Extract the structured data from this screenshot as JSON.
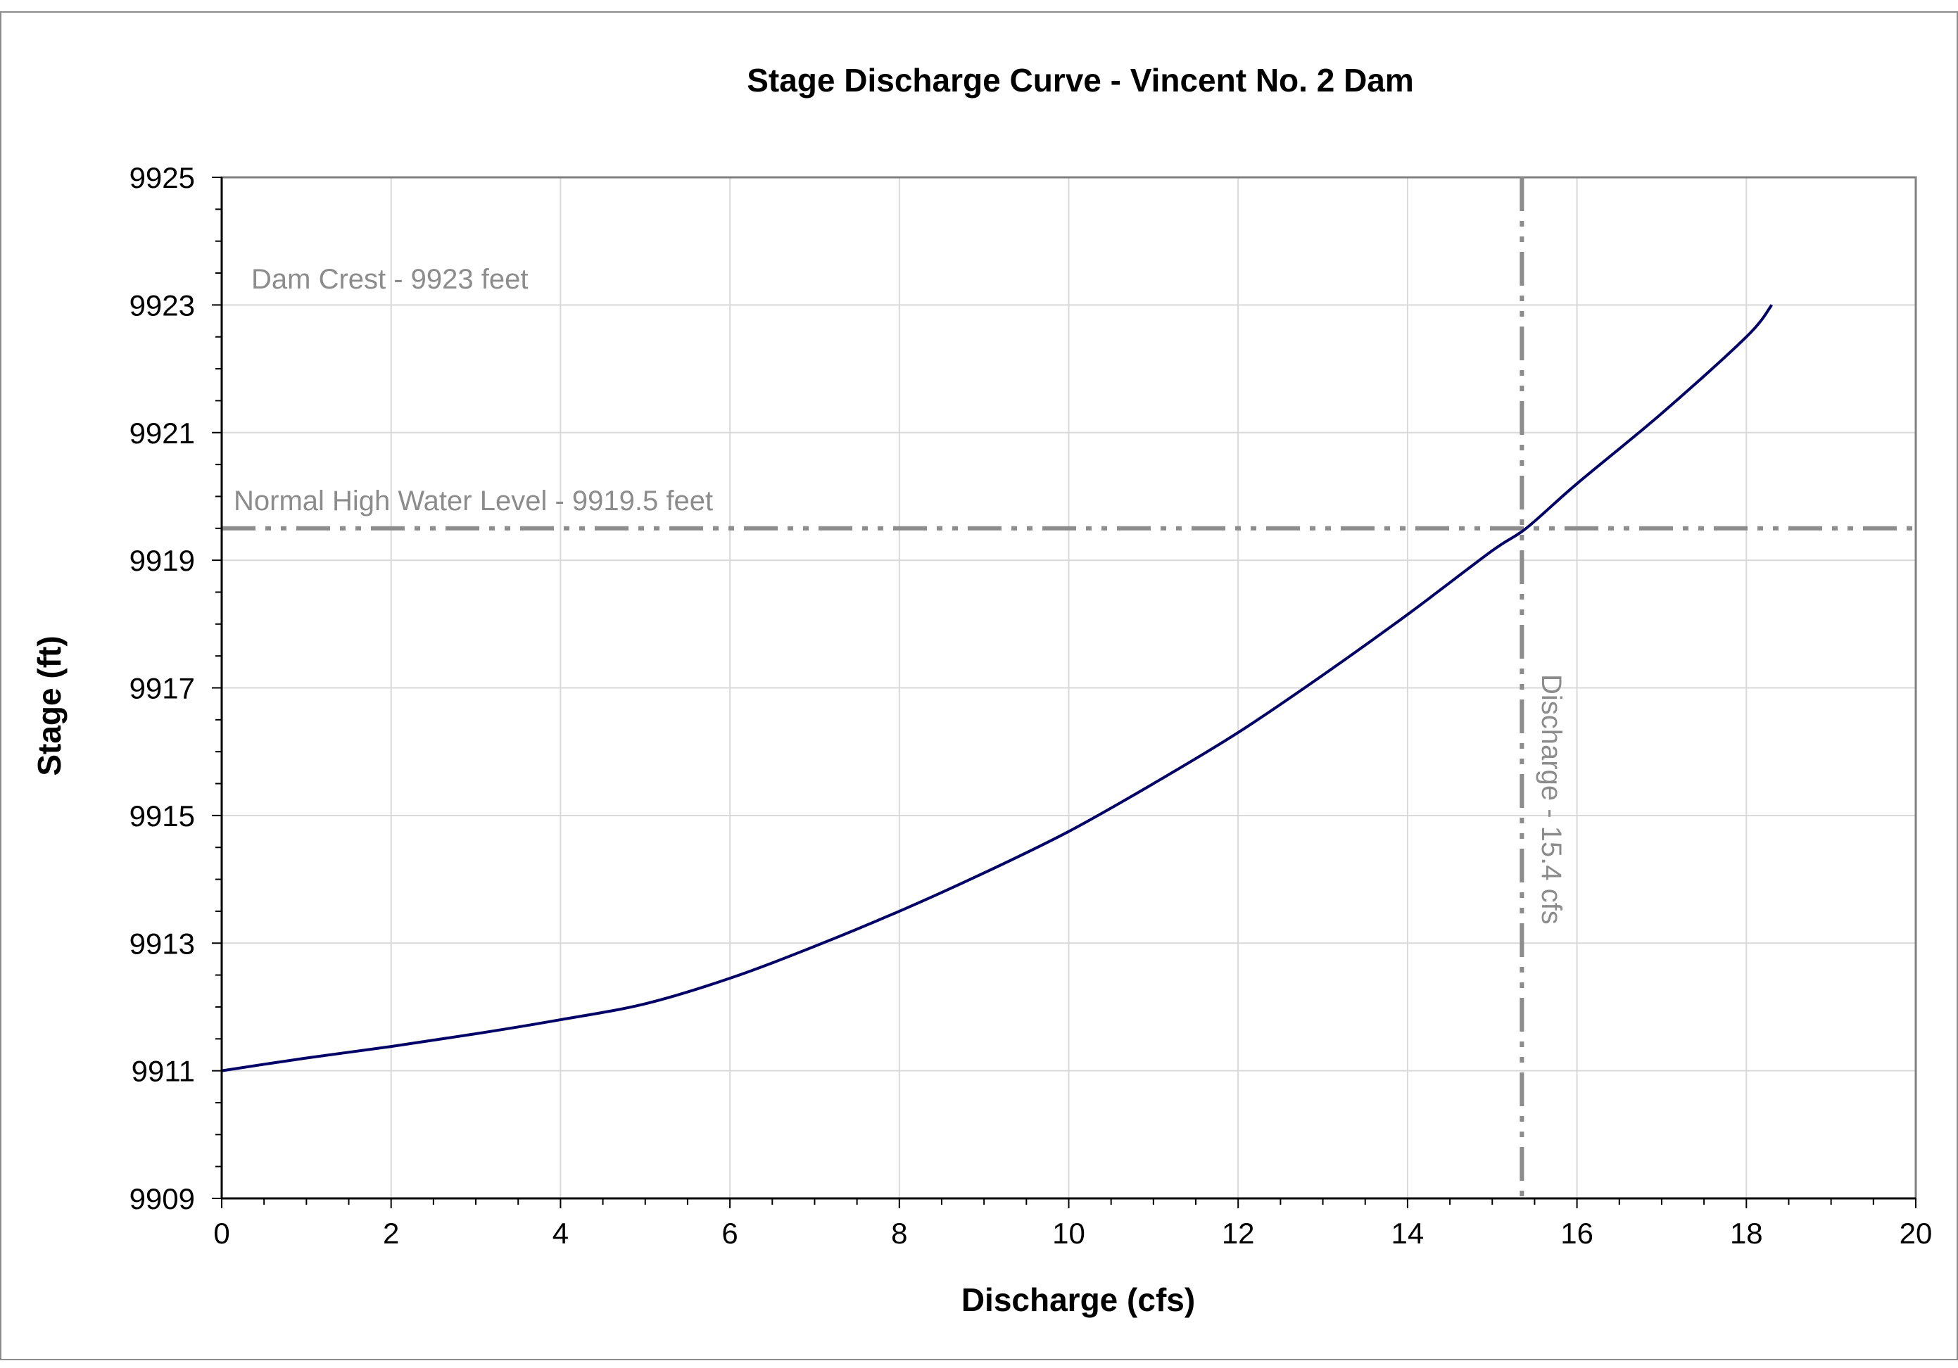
{
  "chart_data": {
    "type": "line",
    "title": "Stage Discharge Curve - Vincent No. 2 Dam",
    "xlabel": "Discharge (cfs)",
    "ylabel": "Stage (ft)",
    "xlim": [
      0,
      20
    ],
    "ylim": [
      9909,
      9925
    ],
    "x_ticks": [
      0,
      2,
      4,
      6,
      8,
      10,
      12,
      14,
      16,
      18,
      20
    ],
    "y_ticks": [
      9909,
      9911,
      9913,
      9915,
      9917,
      9919,
      9921,
      9923,
      9925
    ],
    "x_tick_labels": [
      "0",
      "2",
      "4",
      "6",
      "8",
      "10",
      "12",
      "14",
      "16",
      "18",
      "20"
    ],
    "y_tick_labels": [
      "9909",
      "9911",
      "9913",
      "9915",
      "9917",
      "9919",
      "9921",
      "9923",
      "9925"
    ],
    "grid": true,
    "legend": "none",
    "series": [
      {
        "color": "#000066",
        "x": [
          0,
          1,
          2,
          3,
          4,
          5,
          6,
          7,
          8,
          9,
          10,
          11,
          12,
          13,
          14,
          15,
          15.4,
          16,
          17,
          18,
          18.3
        ],
        "y": [
          9911.0,
          9911.2,
          9911.38,
          9911.58,
          9911.8,
          9912.05,
          9912.45,
          9912.95,
          9913.5,
          9914.1,
          9914.75,
          9915.5,
          9916.3,
          9917.2,
          9918.15,
          9919.15,
          9919.5,
          9920.2,
          9921.3,
          9922.5,
          9923.0
        ]
      }
    ],
    "reference_lines": [
      {
        "orientation": "horizontal",
        "value": 9919.5,
        "color": "#8c8c8c",
        "style": "dash-dot-dot",
        "label": "Normal High Water Level - 9919.5 feet"
      },
      {
        "orientation": "vertical",
        "value": 15.35,
        "color": "#8c8c8c",
        "style": "dash-dot-dot",
        "label": "Discharge - 15.4 cfs"
      }
    ],
    "annotations": [
      {
        "text": "Dam Crest - 9923 feet",
        "color": "#8c8c8c"
      }
    ]
  }
}
